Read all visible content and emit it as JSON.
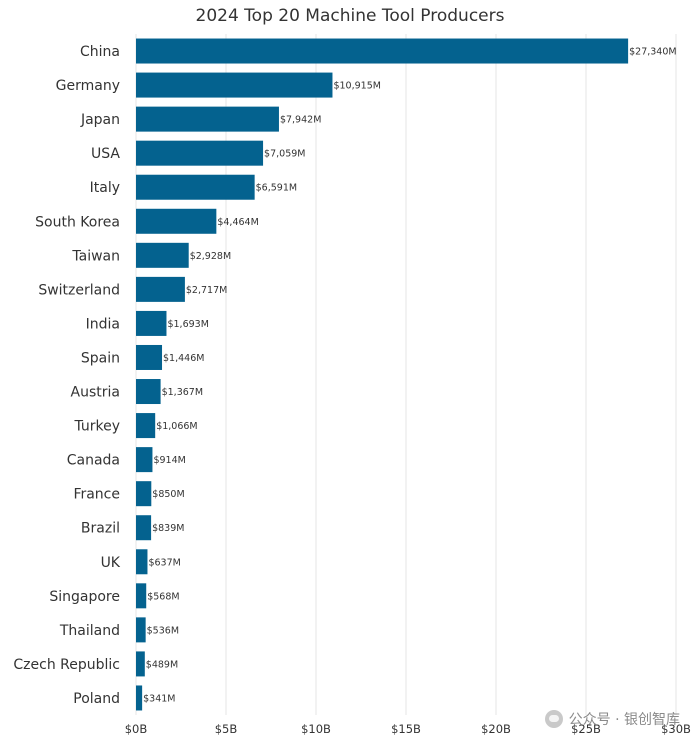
{
  "chart_data": {
    "type": "bar",
    "orientation": "horizontal",
    "title": "2024 Top 20 Machine Tool Producers",
    "categories": [
      "China",
      "Germany",
      "Japan",
      "USA",
      "Italy",
      "South Korea",
      "Taiwan",
      "Switzerland",
      "India",
      "Spain",
      "Austria",
      "Turkey",
      "Canada",
      "France",
      "Brazil",
      "UK",
      "Singapore",
      "Thailand",
      "Czech Republic",
      "Poland"
    ],
    "values": [
      27340,
      10915,
      7942,
      7059,
      6591,
      4464,
      2928,
      2717,
      1693,
      1446,
      1367,
      1066,
      914,
      850,
      839,
      637,
      568,
      536,
      489,
      341
    ],
    "value_unit": "$M",
    "data_labels": [
      "$27,340M",
      "$10,915M",
      "$7,942M",
      "$7,059M",
      "$6,591M",
      "$4,464M",
      "$2,928M",
      "$2,717M",
      "$1,693M",
      "$1,446M",
      "$1,367M",
      "$1,066M",
      "$914M",
      "$850M",
      "$839M",
      "$637M",
      "$568M",
      "$536M",
      "$489M",
      "$341M"
    ],
    "x_ticks": [
      0,
      5000,
      10000,
      15000,
      20000,
      25000,
      30000
    ],
    "x_tick_labels": [
      "$0B",
      "$5B",
      "$10B",
      "$15B",
      "$20B",
      "$25B",
      "$30B"
    ],
    "xlim": [
      0,
      30000
    ],
    "xlabel": "",
    "ylabel": "",
    "grid": "vertical",
    "legend": "none",
    "colors": {
      "bar": "#04628f",
      "grid": "#e6e6e6"
    }
  },
  "watermark": {
    "text": "公众号 · 银创智库",
    "icon": "wechat-icon"
  }
}
